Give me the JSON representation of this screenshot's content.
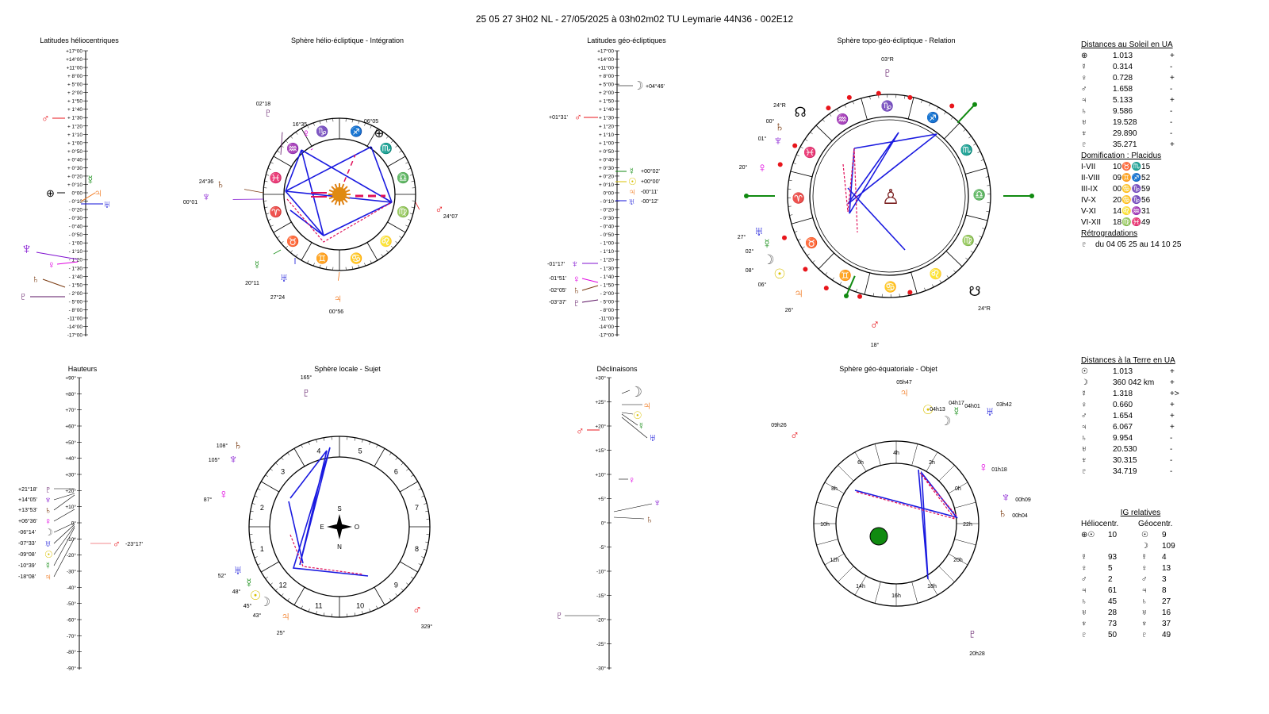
{
  "header": {
    "title": "25 05 27 3H02 NL    -  27/05/2025 à 03h02m02 TU  Leymarie  44N36 - 002E12"
  },
  "panels": {
    "lat_helio": "Latitudes héliocentriques",
    "sphere_helio": "Sphère hélio-écliptique - Intégration",
    "lat_geo": "Latitudes géo-écliptiques",
    "sphere_topo": "Sphère topo-géo-écliptique - Relation",
    "hauteurs": "Hauteurs",
    "sphere_locale": "Sphère locale - Sujet",
    "declinaisons": "Déclinaisons",
    "sphere_equat": "Sphère géo-équatoriale - Objet"
  },
  "scales": {
    "lat_ticks": [
      "+17°00",
      "+14°00",
      "+11°00",
      "+ 8°00",
      "+ 5°00",
      "+ 2°00",
      "+ 1°50",
      "+ 1°40",
      "+ 1°30",
      "+ 1°20",
      "+ 1°10",
      "+ 1°00",
      "+ 0°50",
      "+ 0°40",
      "+ 0°30",
      "+ 0°20",
      "+ 0°10",
      "0°00",
      "- 0°10",
      "- 0°20",
      "- 0°30",
      "- 0°40",
      "- 0°50",
      "- 1°00",
      "- 1°10",
      "- 1°20",
      "- 1°30",
      "- 1°40",
      "- 1°50",
      "- 2°00",
      "- 5°00",
      "- 8°00",
      "-11°00",
      "-14°00",
      "-17°00"
    ],
    "alt_ticks": [
      "+90°",
      "+80°",
      "+70°",
      "+60°",
      "+50°",
      "+40°",
      "+30°",
      "+20°",
      "+10°",
      "0°",
      "-10°",
      "-20°",
      "-30°",
      "-40°",
      "-50°",
      "-60°",
      "-70°",
      "-80°",
      "-90°"
    ],
    "dec_ticks": [
      "+30°",
      "+25°",
      "+20°",
      "+15°",
      "+10°",
      "+5°",
      "0°",
      "-5°",
      "-10°",
      "-15°",
      "-20°",
      "-25°",
      "-30°"
    ]
  },
  "lat_helio_values": [],
  "lat_geo_values": {
    "moon": "+04°46'",
    "mars": "+01°31'",
    "mercury": "+00°02'",
    "sun": "+00°00'",
    "jupiter": "-00°11'",
    "uranus": "-00°12'",
    "neptune": "-01°17'",
    "venus": "-01°51'",
    "saturn": "-02°05'",
    "pluto": "-03°37'"
  },
  "hauteurs_values": {
    "pluto": "+21°18'",
    "neptune": "+14°05'",
    "saturn": "+13°53'",
    "venus": "+06°36'",
    "moon": "-06°14'",
    "uranus": "-07°33'",
    "sun": "-09°08'",
    "mercury": "-10°39'",
    "jupiter": "-18°08'",
    "mars": "-23°17'"
  },
  "helio_labels": {
    "pluto": "02°18",
    "venus": "16°35",
    "earth": "06°05",
    "saturn": "24°36",
    "neptune": "00°01",
    "mars": "24°07",
    "mercury": "20°11",
    "uranus": "27°24",
    "jupiter": "00°56"
  },
  "topo_labels": {
    "pluto": "03°R",
    "node": "24°R",
    "saturn": "00°",
    "neptune": "01°",
    "venus": "20°",
    "uranus": "27°",
    "mercury": "02°",
    "moon": "08°",
    "sun": "06°",
    "jupiter": "26°",
    "mars": "18°",
    "snode": "24°R"
  },
  "locale_labels": {
    "pluto": "165°",
    "saturn": "108°",
    "neptune": "105°",
    "venus": "87°",
    "uranus": "52°",
    "mercury": "48°",
    "sun": "45°",
    "moon": "43°",
    "jupiter": "25°",
    "mars": "329°",
    "houses": [
      "10",
      "9",
      "8",
      "11",
      "12",
      "7",
      "1",
      "6",
      "2",
      "3",
      "4",
      "5"
    ],
    "compass_s": "S",
    "compass_e": "E",
    "compass_o": "O",
    "compass_n": "N"
  },
  "equat_labels": {
    "mars": "09h26",
    "jupiter": "05h47",
    "sun": "04h13",
    "moon": "04h17",
    "mercury": "04h01",
    "uranus": "03h42",
    "venus": "01h18",
    "neptune": "00h09",
    "saturn": "00h04",
    "pluto": "20h28",
    "hours": [
      "6h",
      "4h",
      "2h",
      "0h",
      "22h",
      "20h",
      "18h",
      "16h",
      "14h",
      "12h",
      "10h",
      "8h"
    ]
  },
  "sun_distances": {
    "title": "Distances au Soleil en UA",
    "rows": [
      {
        "g": "⊕",
        "v": "1.013",
        "s": "+"
      },
      {
        "g": "☿",
        "v": "0.314",
        "s": "-"
      },
      {
        "g": "♀",
        "v": "0.728",
        "s": "+"
      },
      {
        "g": "♂",
        "v": "1.658",
        "s": "-"
      },
      {
        "g": "♃",
        "v": "5.133",
        "s": "+"
      },
      {
        "g": "♄",
        "v": "9.586",
        "s": "-"
      },
      {
        "g": "♅",
        "v": "19.528",
        "s": "-"
      },
      {
        "g": "♆",
        "v": "29.890",
        "s": "-"
      },
      {
        "g": "♇",
        "v": "35.271",
        "s": "+"
      }
    ]
  },
  "domification": {
    "title": "Domification : Placidus",
    "rows": [
      {
        "k": "I-VII",
        "v": "10♉♏15"
      },
      {
        "k": "II-VIII",
        "v": "09♊♐52"
      },
      {
        "k": "III-IX",
        "v": "00♋♑59"
      },
      {
        "k": "IV-X",
        "v": "20♋♑56"
      },
      {
        "k": "V-XI",
        "v": "14♌♒31"
      },
      {
        "k": "VI-XII",
        "v": "18♍♓49"
      }
    ]
  },
  "retro": {
    "title": "Rétrogradations",
    "g": "♇",
    "text": "du 04 05 25 au 14 10 25"
  },
  "earth_distances": {
    "title": "Distances à la Terre en UA",
    "rows": [
      {
        "g": "☉",
        "v": "1.013",
        "s": "+"
      },
      {
        "g": "☽",
        "v": "360 042 km",
        "s": "+"
      },
      {
        "g": "☿",
        "v": "1.318",
        "s": "+>"
      },
      {
        "g": "♀",
        "v": "0.660",
        "s": "+"
      },
      {
        "g": "♂",
        "v": "1.654",
        "s": "+"
      },
      {
        "g": "♃",
        "v": "6.067",
        "s": "+"
      },
      {
        "g": "♄",
        "v": "9.954",
        "s": "-"
      },
      {
        "g": "♅",
        "v": "20.530",
        "s": "-"
      },
      {
        "g": "♆",
        "v": "30.315",
        "s": "-"
      },
      {
        "g": "♇",
        "v": "34.719",
        "s": "-"
      }
    ]
  },
  "ig": {
    "title": "IG relatives",
    "col1": "Héliocentr.",
    "col2": "Géocentr.",
    "rows": [
      {
        "g1": "⊕☉",
        "v1": "10",
        "g2": "☉",
        "v2": "9"
      },
      {
        "g1": "",
        "v1": "",
        "g2": "☽",
        "v2": "109"
      },
      {
        "g1": "☿",
        "v1": "93",
        "g2": "☿",
        "v2": "4"
      },
      {
        "g1": "♀",
        "v1": "5",
        "g2": "♀",
        "v2": "13"
      },
      {
        "g1": "♂",
        "v1": "2",
        "g2": "♂",
        "v2": "3"
      },
      {
        "g1": "♃",
        "v1": "61",
        "g2": "♃",
        "v2": "8"
      },
      {
        "g1": "♄",
        "v1": "45",
        "g2": "♄",
        "v2": "27"
      },
      {
        "g1": "♅",
        "v1": "28",
        "g2": "♅",
        "v2": "16"
      },
      {
        "g1": "♆",
        "v1": "73",
        "g2": "♆",
        "v2": "37"
      },
      {
        "g1": "♇",
        "v1": "50",
        "g2": "♇",
        "v2": "49"
      }
    ]
  },
  "colors": {
    "mars": "#e8151b",
    "venus": "#e000e0",
    "mercury": "#108a10",
    "sun": "#d8c000",
    "moon": "#666666",
    "jupiter": "#f07010",
    "saturn": "#7a3a10",
    "uranus": "#1010d8",
    "neptune": "#8010d0",
    "pluto": "#5a1060",
    "aspect": "#1a1ae0",
    "dashed": "#e0105a"
  }
}
